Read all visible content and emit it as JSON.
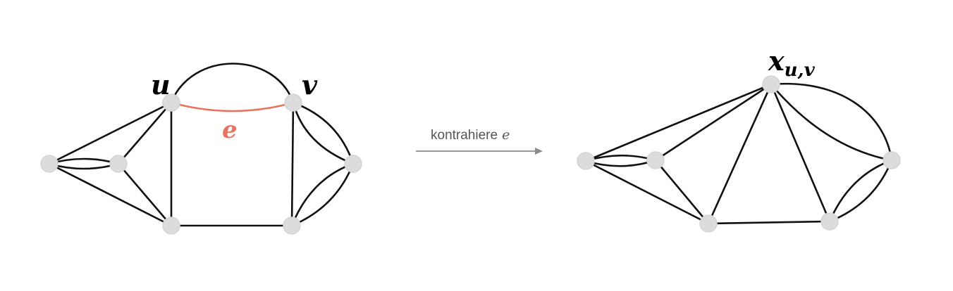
{
  "colors": {
    "node_fill": "#dcdcdc",
    "edge": "#111111",
    "highlight": "#e8735f",
    "arrow": "#8a8a8a",
    "arrow_text": "#555555"
  },
  "left_graph": {
    "label_u": "u",
    "label_v": "v",
    "label_e": "e"
  },
  "arrow": {
    "text": "kontrahiere",
    "var": "e"
  },
  "right_graph": {
    "label_x": "x",
    "label_x_sub": "u,v"
  }
}
